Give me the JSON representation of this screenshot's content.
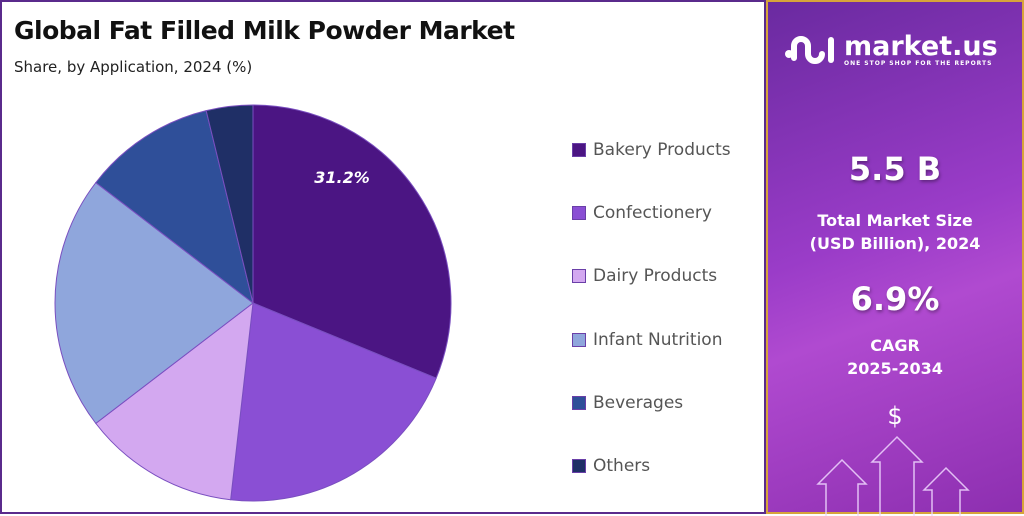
{
  "chart_data": {
    "type": "pie",
    "title": "Global Fat Filled Milk Powder Market",
    "subtitle": "Share, by Application, 2024 (%)",
    "categories": [
      "Bakery Products",
      "Confectionery",
      "Dairy Products",
      "Infant Nutrition",
      "Beverages",
      "Others"
    ],
    "values": [
      31.2,
      20.6,
      12.8,
      20.8,
      10.8,
      3.8
    ],
    "colors": [
      "#4b1583",
      "#8a4fd4",
      "#d3a8f0",
      "#8fa6dc",
      "#2f4f99",
      "#1f2f66"
    ],
    "data_labels": [
      {
        "category": "Bakery Products",
        "text": "31.2%"
      }
    ],
    "legend_placement": "right"
  },
  "sidebar": {
    "brand": "market.us",
    "tagline": "ONE STOP SHOP FOR THE REPORTS",
    "market_size": "5.5 B",
    "market_size_label_1": "Total Market Size",
    "market_size_label_2": "(USD Billion), 2024",
    "cagr": "6.9%",
    "cagr_label_1": "CAGR",
    "cagr_label_2": "2025-2034",
    "dollar": "$"
  }
}
